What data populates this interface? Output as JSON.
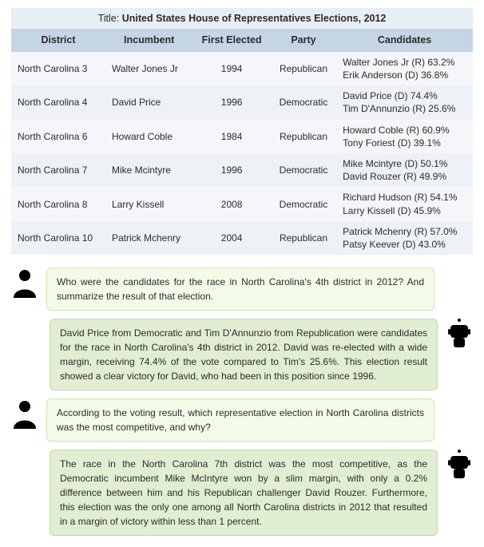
{
  "table": {
    "title_label": "Title: ",
    "title_text": "United States House of Representatives Elections, 2012",
    "columns": [
      "District",
      "Incumbent",
      "First Elected",
      "Party",
      "Candidates"
    ],
    "rows": [
      {
        "district": "North Carolina 3",
        "incumbent": "Walter Jones Jr",
        "first_elected": "1994",
        "party": "Republican",
        "candidates": "Walter Jones Jr (R) 63.2%\nErik Anderson (D) 36.8%"
      },
      {
        "district": "North Carolina 4",
        "incumbent": "David Price",
        "first_elected": "1996",
        "party": "Democratic",
        "candidates": "David Price (D) 74.4%\nTim D'Annunzio (R) 25.6%"
      },
      {
        "district": "North Carolina 6",
        "incumbent": "Howard Coble",
        "first_elected": "1984",
        "party": "Republican",
        "candidates": "Howard Coble (R) 60.9%\nTony Foriest (D) 39.1%"
      },
      {
        "district": "North Carolina 7",
        "incumbent": "Mike Mcintyre",
        "first_elected": "1996",
        "party": "Democratic",
        "candidates": "Mike Mcintyre (D) 50.1%\nDavid Rouzer (R) 49.9%"
      },
      {
        "district": "North Carolina 8",
        "incumbent": "Larry Kissell",
        "first_elected": "2008",
        "party": "Democratic",
        "candidates": "Richard Hudson (R) 54.1%\nLarry Kissell (D) 45.9%"
      },
      {
        "district": "North Carolina 10",
        "incumbent": "Patrick Mchenry",
        "first_elected": "2004",
        "party": "Republican",
        "candidates": "Patrick Mchenry (R) 57.0%\nPatsy Keever (D) 43.0%"
      }
    ],
    "header_bg": "#c5d5e6",
    "row_bg_a": "#f4f6f9",
    "row_bg_b": "#eef1f5",
    "title_bg": "#e8eef5",
    "text_color": "#2b2b2b",
    "font_size_header": 12.5,
    "font_size_body": 12
  },
  "conversation": [
    {
      "role": "user",
      "text": "Who were the candidates for the race in North Carolina's 4th district in 2012? And summarize the result of that election."
    },
    {
      "role": "bot",
      "text": "David Price from Democratic and Tim D'Annunzio from Republication were candidates for the race in North Carolina's 4th district in 2012. David was re-elected with a wide margin, receiving 74.4% of the vote compared to Tim's 25.6%. This election result showed a clear victory for David, who had been in this position since 1996."
    },
    {
      "role": "user",
      "text": "According to the voting result, which representative election in North Carolina districts was the most competitive, and why?"
    },
    {
      "role": "bot",
      "text": "The race in the North Carolina 7th district was the most competitive, as the Democratic incumbent Mike McIntyre won by a slim margin, with only a 0.2% difference between him and his Republican challenger David Rouzer. Furthermore, this election was the only one among all North Carolina districts in 2012 that resulted in a margin of victory within less than 1 percent."
    }
  ],
  "colors": {
    "user_bubble_bg": "#f2fbe8",
    "user_bubble_border": "#cde6b2",
    "bot_bubble_bg": "#e1eed2",
    "bot_bubble_border": "#c4d9a8",
    "user_icon": "#e57b2a",
    "bot_icon": "#9aa3ab",
    "bot_icon_dark": "#7f8a93"
  },
  "icons": {
    "user": "person-icon",
    "bot": "robot-icon"
  }
}
